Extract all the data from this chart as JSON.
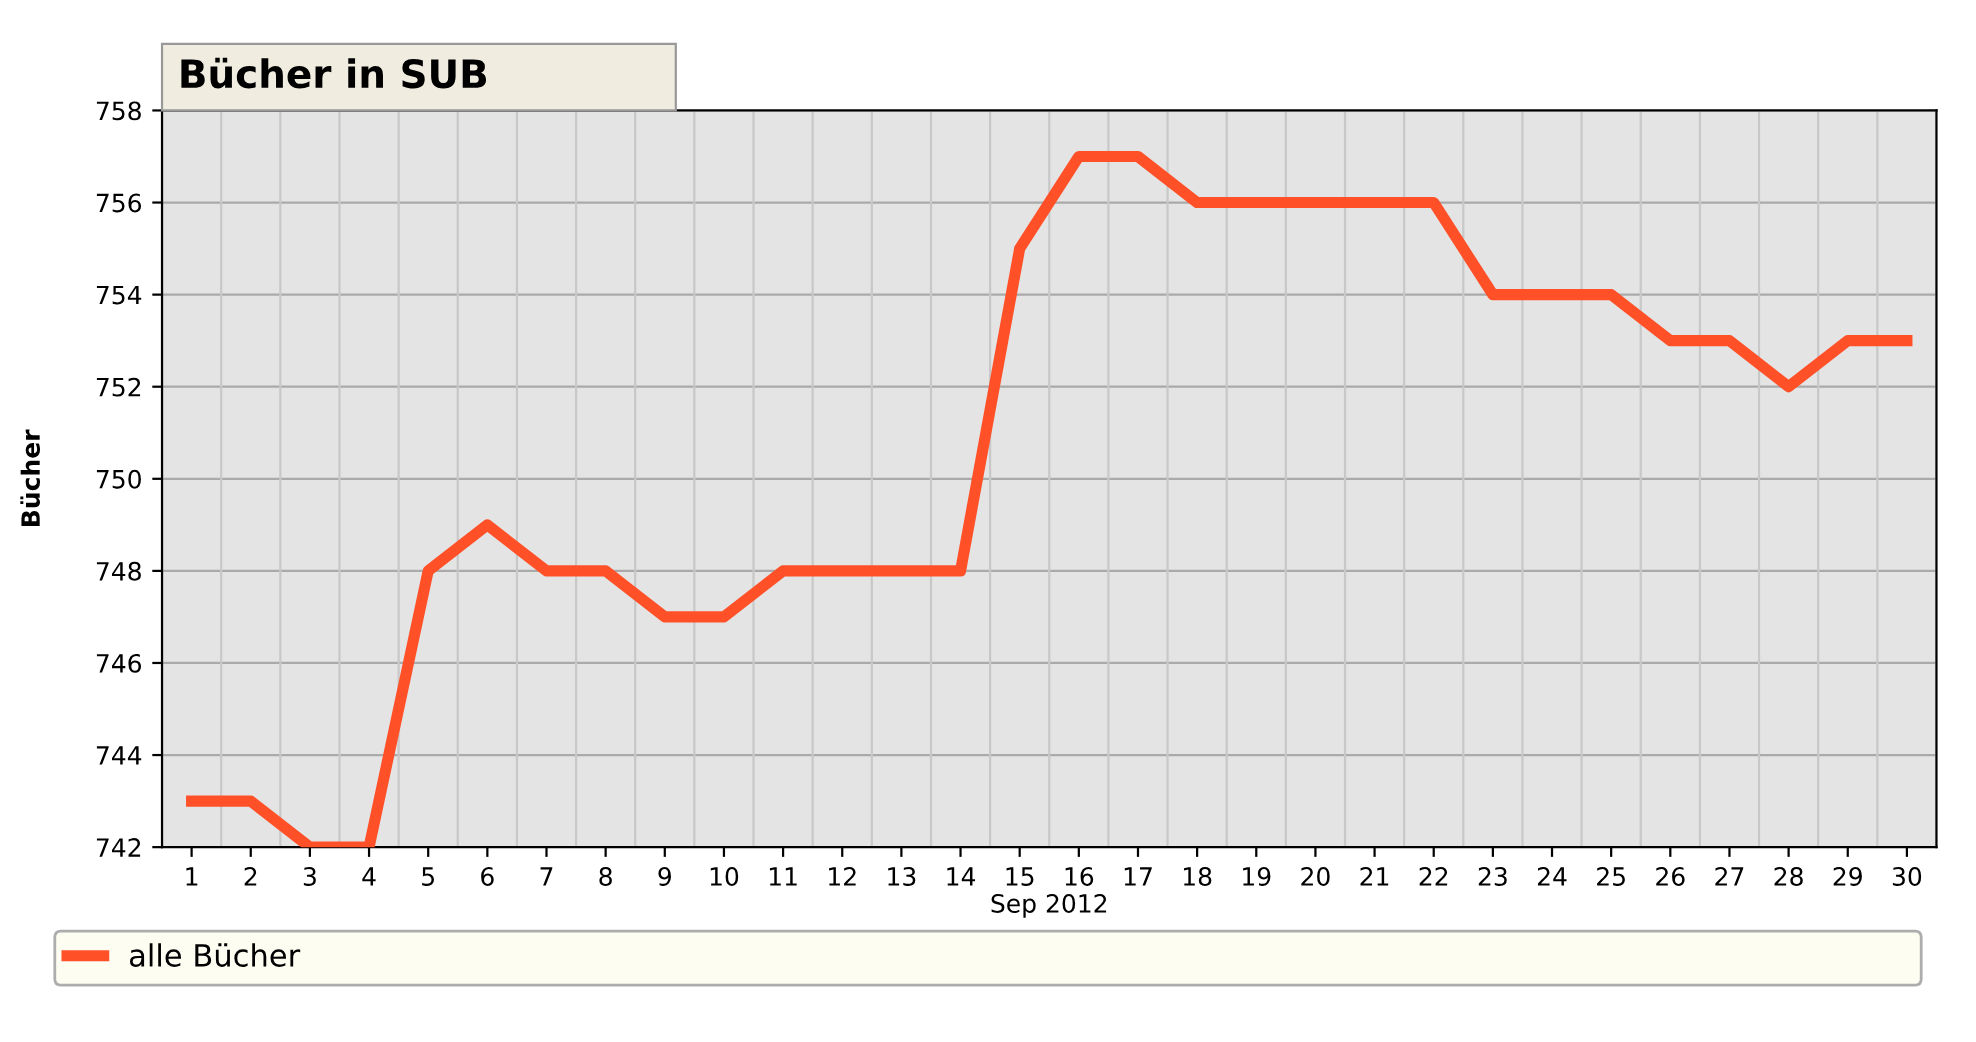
{
  "chart_data": {
    "type": "line",
    "title": "Bücher in SUB",
    "ylabel": "Bücher",
    "xlabel": "Sep 2012",
    "categories": [
      "1",
      "2",
      "3",
      "4",
      "5",
      "6",
      "7",
      "8",
      "9",
      "10",
      "11",
      "12",
      "13",
      "14",
      "15",
      "16",
      "17",
      "18",
      "19",
      "20",
      "21",
      "22",
      "23",
      "24",
      "25",
      "26",
      "27",
      "28",
      "29",
      "30"
    ],
    "series": [
      {
        "name": "alle Bücher",
        "color": "#ff5028",
        "values": [
          743,
          743,
          742,
          742,
          748,
          749,
          748,
          748,
          747,
          747,
          748,
          748,
          748,
          748,
          755,
          757,
          757,
          756,
          756,
          756,
          756,
          756,
          754,
          754,
          754,
          753,
          753,
          752,
          753,
          753
        ]
      }
    ],
    "ylim": [
      742,
      758
    ],
    "yticks": [
      742,
      744,
      746,
      748,
      750,
      752,
      754,
      756,
      758
    ],
    "grid": true,
    "legend": "bottom",
    "marker": "none",
    "line_style": "solid"
  }
}
